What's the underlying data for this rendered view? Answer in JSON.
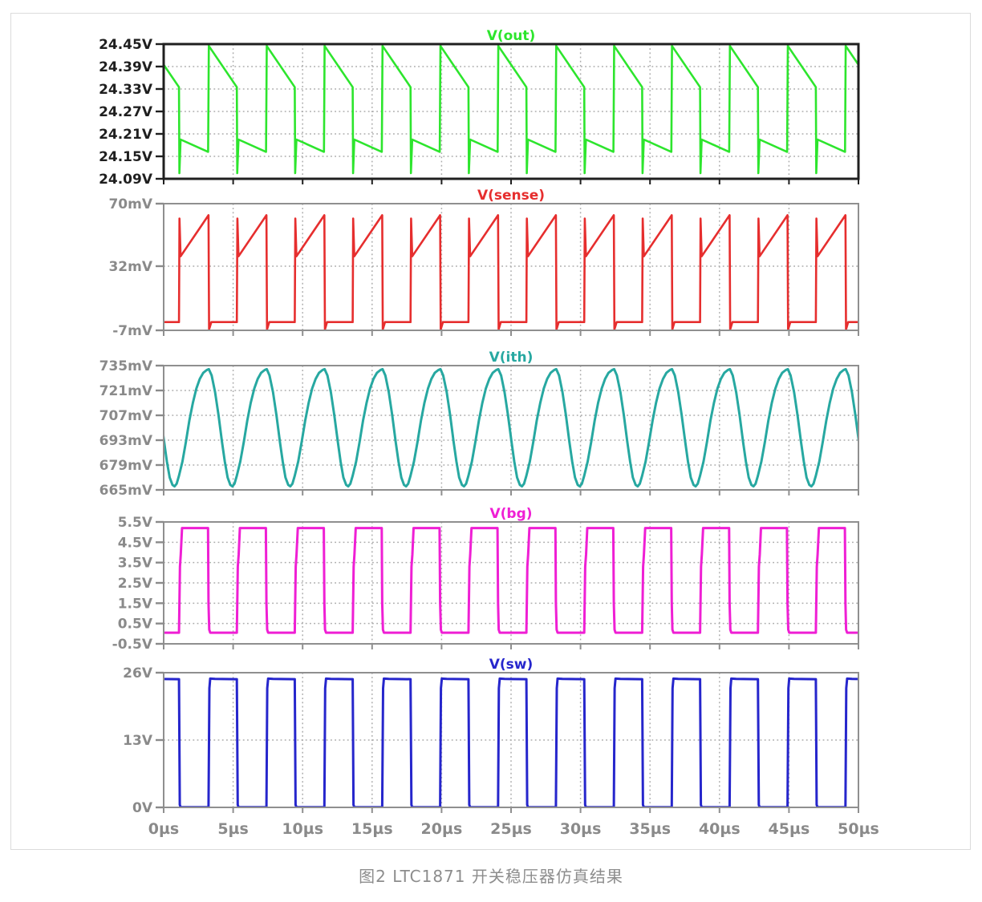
{
  "caption": "图2 LTC1871 开关稳压器仿真结果",
  "style": {
    "grid_color": "#ababab",
    "axis_gray": "#8f8f8f",
    "label_gray": "#8a8a8a",
    "black": "#1f1f1f"
  },
  "x_axis": {
    "unit": "µs",
    "range": [
      0,
      50
    ],
    "ticks": [
      0,
      5,
      10,
      15,
      20,
      25,
      30,
      35,
      40,
      45,
      50
    ],
    "tick_labels": [
      "0µs",
      "5µs",
      "10µs",
      "15µs",
      "20µs",
      "25µs",
      "30µs",
      "35µs",
      "40µs",
      "45µs",
      "50µs"
    ]
  },
  "chart_data": [
    {
      "type": "line",
      "title": "V(out)",
      "color": "#2de52d",
      "label_color": "#1f1f1f",
      "border_color": "#1f1f1f",
      "border_width": 3,
      "line_width": 2.6,
      "y_range": [
        24.09,
        24.45
      ],
      "y_ticks": [
        24.45,
        24.39,
        24.33,
        24.27,
        24.21,
        24.15,
        24.09
      ],
      "y_tick_labels": [
        "24.45V",
        "24.39V",
        "24.33V",
        "24.27V",
        "24.21V",
        "24.15V",
        "24.09V"
      ],
      "waveform": {
        "kind": "periodic",
        "period_us": 4.16667,
        "anchor_us": 1.1,
        "cycle_points": [
          [
            0,
            24.335
          ],
          [
            0.03,
            24.105
          ],
          [
            0.12,
            24.195
          ],
          [
            2.1,
            24.162
          ],
          [
            2.15,
            24.445
          ],
          [
            4.16667,
            24.335
          ]
        ]
      }
    },
    {
      "type": "line",
      "title": "V(sense)",
      "color": "#e62e2e",
      "label_color": "#8a8a8a",
      "border_color": "#8f8f8f",
      "border_width": 2,
      "line_width": 2.6,
      "y_range": [
        -7,
        70
      ],
      "y_ticks": [
        70,
        32,
        -7
      ],
      "y_tick_labels": [
        "70mV",
        "32mV",
        "-7mV"
      ],
      "waveform": {
        "kind": "periodic",
        "period_us": 4.16667,
        "anchor_us": 1.1,
        "cycle_points": [
          [
            0,
            -2
          ],
          [
            0.04,
            61
          ],
          [
            0.12,
            38
          ],
          [
            2.13,
            63
          ],
          [
            2.17,
            -6.5
          ],
          [
            2.33,
            -2
          ],
          [
            4.16667,
            -2
          ]
        ]
      }
    },
    {
      "type": "line",
      "title": "V(ith)",
      "color": "#27a8a1",
      "label_color": "#8a8a8a",
      "border_color": "#8f8f8f",
      "border_width": 2,
      "line_width": 3,
      "y_range": [
        665,
        735
      ],
      "y_ticks": [
        735,
        721,
        707,
        693,
        679,
        665
      ],
      "y_tick_labels": [
        "735mV",
        "721mV",
        "707mV",
        "693mV",
        "679mV",
        "665mV"
      ],
      "waveform": {
        "kind": "periodic",
        "period_us": 4.16667,
        "anchor_us": 1.1,
        "cycle_points": [
          [
            0,
            673
          ],
          [
            0.25,
            681
          ],
          [
            0.5,
            692
          ],
          [
            0.75,
            704
          ],
          [
            1.0,
            714
          ],
          [
            1.25,
            722
          ],
          [
            1.5,
            727.5
          ],
          [
            1.75,
            731
          ],
          [
            2.0,
            732.5
          ],
          [
            2.15,
            733
          ],
          [
            2.35,
            729.5
          ],
          [
            2.6,
            720
          ],
          [
            2.85,
            707
          ],
          [
            3.1,
            692
          ],
          [
            3.3,
            681
          ],
          [
            3.5,
            672
          ],
          [
            3.7,
            667.8
          ],
          [
            3.85,
            667
          ],
          [
            4.0,
            668.5
          ],
          [
            4.16667,
            673
          ]
        ]
      }
    },
    {
      "type": "line",
      "title": "V(bg)",
      "color": "#ef1fd4",
      "label_color": "#8a8a8a",
      "border_color": "#8f8f8f",
      "border_width": 2,
      "line_width": 3,
      "y_range": [
        -0.5,
        5.5
      ],
      "y_ticks": [
        5.5,
        4.5,
        3.5,
        2.5,
        1.5,
        0.5,
        -0.5
      ],
      "y_tick_labels": [
        "5.5V",
        "4.5V",
        "3.5V",
        "2.5V",
        "1.5V",
        "0.5V",
        "-0.5V"
      ],
      "waveform": {
        "kind": "periodic",
        "period_us": 4.16667,
        "anchor_us": 1.1,
        "cycle_points": [
          [
            0,
            0.05
          ],
          [
            0.07,
            3.3
          ],
          [
            0.13,
            3.9
          ],
          [
            0.22,
            5.2
          ],
          [
            2.09,
            5.2
          ],
          [
            2.13,
            1.5
          ],
          [
            2.18,
            0.2
          ],
          [
            2.25,
            0.05
          ],
          [
            4.16667,
            0.05
          ]
        ]
      }
    },
    {
      "type": "line",
      "title": "V(sw)",
      "color": "#2626cc",
      "label_color": "#8a8a8a",
      "border_color": "#8f8f8f",
      "border_width": 2,
      "line_width": 3,
      "y_range": [
        0,
        26
      ],
      "y_ticks": [
        26,
        13,
        0
      ],
      "y_tick_labels": [
        "26V",
        "13V",
        "0V"
      ],
      "show_x_labels": true,
      "waveform": {
        "kind": "periodic",
        "period_us": 4.16667,
        "anchor_us": 1.1,
        "cycle_points": [
          [
            0,
            24.75
          ],
          [
            0.06,
            0.5
          ],
          [
            0.12,
            0.05
          ],
          [
            2.13,
            0.05
          ],
          [
            2.19,
            23
          ],
          [
            2.25,
            24.85
          ],
          [
            2.6,
            24.8
          ],
          [
            4.16667,
            24.75
          ]
        ]
      }
    }
  ]
}
